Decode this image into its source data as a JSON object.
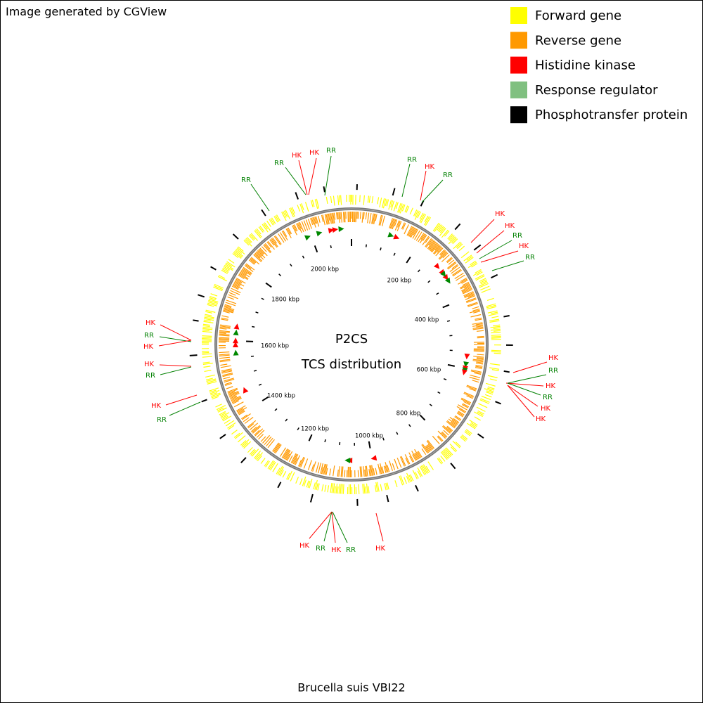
{
  "header": {
    "credit": "Image generated by CGView"
  },
  "legend": {
    "items": [
      {
        "label": "Forward gene",
        "color": "#ffff00"
      },
      {
        "label": "Reverse gene",
        "color": "#ff9900"
      },
      {
        "label": "Histidine kinase",
        "color": "#ff0000"
      },
      {
        "label": "Response regulator",
        "color": "#80c080"
      },
      {
        "label": "Phosphotransfer protein",
        "color": "#000000"
      }
    ]
  },
  "map": {
    "center": [
      "P2CS",
      "TCS distribution"
    ],
    "tick_labels": [
      "200 kbp",
      "400 kbp",
      "600 kbp",
      "800 kbp",
      "1000 kbp",
      "1200 kbp",
      "1400 kbp",
      "1600 kbp",
      "1800 kbp",
      "2000 kbp"
    ],
    "callouts": [
      {
        "label": "RR",
        "color": "#008000"
      },
      {
        "label": "RR",
        "color": "#008000"
      },
      {
        "label": "HK",
        "color": "#ff0000"
      },
      {
        "label": "HK",
        "color": "#ff0000"
      },
      {
        "label": "RR",
        "color": "#008000"
      },
      {
        "label": "RR",
        "color": "#008000"
      },
      {
        "label": "HK",
        "color": "#ff0000"
      },
      {
        "label": "RR",
        "color": "#008000"
      },
      {
        "label": "HK",
        "color": "#ff0000"
      },
      {
        "label": "HK",
        "color": "#ff0000"
      },
      {
        "label": "RR",
        "color": "#008000"
      },
      {
        "label": "HK",
        "color": "#ff0000"
      },
      {
        "label": "RR",
        "color": "#008000"
      },
      {
        "label": "HK",
        "color": "#ff0000"
      },
      {
        "label": "RR",
        "color": "#008000"
      },
      {
        "label": "HK",
        "color": "#ff0000"
      },
      {
        "label": "RR",
        "color": "#008000"
      },
      {
        "label": "HK",
        "color": "#ff0000"
      },
      {
        "label": "HK",
        "color": "#ff0000"
      },
      {
        "label": "HK",
        "color": "#ff0000"
      },
      {
        "label": "RR",
        "color": "#008000"
      },
      {
        "label": "HK",
        "color": "#ff0000"
      },
      {
        "label": "HK",
        "color": "#ff0000"
      },
      {
        "label": "RR",
        "color": "#008000"
      },
      {
        "label": "HK",
        "color": "#ff0000"
      },
      {
        "label": "RR",
        "color": "#008000"
      },
      {
        "label": "HK",
        "color": "#ff0000"
      },
      {
        "label": "RR",
        "color": "#008000"
      },
      {
        "label": "HK",
        "color": "#ff0000"
      },
      {
        "label": "RR",
        "color": "#008000"
      },
      {
        "label": "HK",
        "color": "#ff0000"
      }
    ]
  },
  "footer": {
    "caption": "Brucella suis VBI22"
  }
}
